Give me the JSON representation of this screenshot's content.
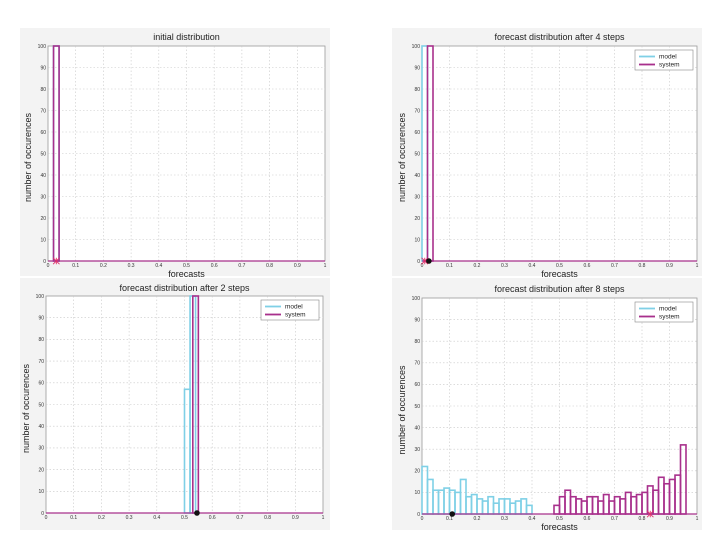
{
  "colors": {
    "model": "#7fd0e6",
    "system": "#a8308c",
    "marker_system": "#e0306a",
    "marker_black": "#111111"
  },
  "chart_data": [
    {
      "type": "bar",
      "title": "initial distribution",
      "xlabel": "forecasts",
      "ylabel": "number of occurences",
      "xlim": [
        0,
        1
      ],
      "ylim": [
        0,
        100
      ],
      "xticks": [
        "0",
        "0.1",
        "0.2",
        "0.3",
        "0.4",
        "0.5",
        "0.6",
        "0.7",
        "0.8",
        "0.9",
        "1"
      ],
      "yticks": [
        "0",
        "10",
        "20",
        "30",
        "40",
        "50",
        "60",
        "70",
        "80",
        "90",
        "100"
      ],
      "grid": true,
      "legend": null,
      "bin_width": 0.02,
      "series": [
        {
          "key": "model",
          "bins": [
            {
              "x": 0.02,
              "value": 100
            }
          ]
        },
        {
          "key": "system",
          "bins": [
            {
              "x": 0.02,
              "value": 100
            }
          ]
        }
      ],
      "markers": [
        {
          "x": 0.03,
          "style": "star",
          "color_key": "marker_system"
        }
      ]
    },
    {
      "type": "bar",
      "title": "forecast distribution after 4 steps",
      "xlabel": "forecasts",
      "ylabel": "number of occurences",
      "xlim": [
        0,
        1
      ],
      "ylim": [
        0,
        100
      ],
      "xticks": [
        "0",
        "0.1",
        "0.2",
        "0.3",
        "0.4",
        "0.5",
        "0.6",
        "0.7",
        "0.8",
        "0.9",
        "1"
      ],
      "yticks": [
        "0",
        "10",
        "20",
        "30",
        "40",
        "50",
        "60",
        "70",
        "80",
        "90",
        "100"
      ],
      "grid": true,
      "legend": {
        "position": "top-right",
        "entries": [
          {
            "label": "model",
            "key": "model"
          },
          {
            "label": "system",
            "key": "system"
          }
        ]
      },
      "bin_width": 0.02,
      "series": [
        {
          "key": "model",
          "bins": [
            {
              "x": 0.0,
              "value": 100
            }
          ]
        },
        {
          "key": "system",
          "bins": [
            {
              "x": 0.02,
              "value": 100
            }
          ]
        }
      ],
      "markers": [
        {
          "x": 0.01,
          "style": "star",
          "color_key": "marker_system"
        },
        {
          "x": 0.025,
          "style": "dot",
          "color_key": "marker_black"
        }
      ]
    },
    {
      "type": "bar",
      "title": "forecast distribution after 2 steps",
      "xlabel": "",
      "ylabel": "number of occurences",
      "xlim": [
        0,
        1
      ],
      "ylim": [
        0,
        100
      ],
      "xticks": [
        "0",
        "0.1",
        "0.2",
        "0.3",
        "0.4",
        "0.5",
        "0.6",
        "0.7",
        "0.8",
        "0.9",
        "1"
      ],
      "yticks": [
        "0",
        "10",
        "20",
        "30",
        "40",
        "50",
        "60",
        "70",
        "80",
        "90",
        "100"
      ],
      "grid": true,
      "legend": {
        "position": "top-right",
        "entries": [
          {
            "label": "model",
            "key": "model"
          },
          {
            "label": "system",
            "key": "system"
          }
        ]
      },
      "bin_width": 0.02,
      "series": [
        {
          "key": "model",
          "bins": [
            {
              "x": 0.5,
              "value": 57
            },
            {
              "x": 0.52,
              "value": 100
            }
          ]
        },
        {
          "key": "system",
          "bins": [
            {
              "x": 0.53,
              "value": 100
            }
          ]
        }
      ],
      "markers": [
        {
          "x": 0.545,
          "style": "dot",
          "color_key": "marker_black"
        }
      ]
    },
    {
      "type": "bar",
      "title": "forecast distribution after 8 steps",
      "xlabel": "forecasts",
      "ylabel": "number of occurences",
      "xlim": [
        0,
        1
      ],
      "ylim": [
        0,
        100
      ],
      "xticks": [
        "0",
        "0.1",
        "0.2",
        "0.3",
        "0.4",
        "0.5",
        "0.6",
        "0.7",
        "0.8",
        "0.9",
        "1"
      ],
      "yticks": [
        "0",
        "10",
        "20",
        "30",
        "40",
        "50",
        "60",
        "70",
        "80",
        "90",
        "100"
      ],
      "grid": true,
      "legend": {
        "position": "top-right",
        "entries": [
          {
            "label": "model",
            "key": "model"
          },
          {
            "label": "system",
            "key": "system"
          }
        ]
      },
      "bin_width": 0.02,
      "series": [
        {
          "key": "model",
          "bins": [
            {
              "x": 0.0,
              "value": 22
            },
            {
              "x": 0.02,
              "value": 16
            },
            {
              "x": 0.04,
              "value": 11
            },
            {
              "x": 0.06,
              "value": 11
            },
            {
              "x": 0.08,
              "value": 12
            },
            {
              "x": 0.1,
              "value": 11
            },
            {
              "x": 0.12,
              "value": 10
            },
            {
              "x": 0.14,
              "value": 16
            },
            {
              "x": 0.16,
              "value": 8
            },
            {
              "x": 0.18,
              "value": 9
            },
            {
              "x": 0.2,
              "value": 7
            },
            {
              "x": 0.22,
              "value": 6
            },
            {
              "x": 0.24,
              "value": 8
            },
            {
              "x": 0.26,
              "value": 5
            },
            {
              "x": 0.28,
              "value": 7
            },
            {
              "x": 0.3,
              "value": 7
            },
            {
              "x": 0.32,
              "value": 5
            },
            {
              "x": 0.34,
              "value": 6
            },
            {
              "x": 0.36,
              "value": 7
            },
            {
              "x": 0.38,
              "value": 4
            }
          ]
        },
        {
          "key": "system",
          "bins": [
            {
              "x": 0.48,
              "value": 4
            },
            {
              "x": 0.5,
              "value": 8
            },
            {
              "x": 0.52,
              "value": 11
            },
            {
              "x": 0.54,
              "value": 8
            },
            {
              "x": 0.56,
              "value": 7
            },
            {
              "x": 0.58,
              "value": 6
            },
            {
              "x": 0.6,
              "value": 8
            },
            {
              "x": 0.62,
              "value": 8
            },
            {
              "x": 0.64,
              "value": 6
            },
            {
              "x": 0.66,
              "value": 9
            },
            {
              "x": 0.68,
              "value": 6
            },
            {
              "x": 0.7,
              "value": 8
            },
            {
              "x": 0.72,
              "value": 7
            },
            {
              "x": 0.74,
              "value": 10
            },
            {
              "x": 0.76,
              "value": 8
            },
            {
              "x": 0.78,
              "value": 9
            },
            {
              "x": 0.8,
              "value": 10
            },
            {
              "x": 0.82,
              "value": 13
            },
            {
              "x": 0.84,
              "value": 11
            },
            {
              "x": 0.86,
              "value": 17
            },
            {
              "x": 0.88,
              "value": 14
            },
            {
              "x": 0.9,
              "value": 16
            },
            {
              "x": 0.92,
              "value": 18
            },
            {
              "x": 0.94,
              "value": 32
            }
          ]
        }
      ],
      "markers": [
        {
          "x": 0.11,
          "style": "dot",
          "color_key": "marker_black"
        },
        {
          "x": 0.83,
          "style": "star",
          "color_key": "marker_system"
        }
      ]
    }
  ]
}
